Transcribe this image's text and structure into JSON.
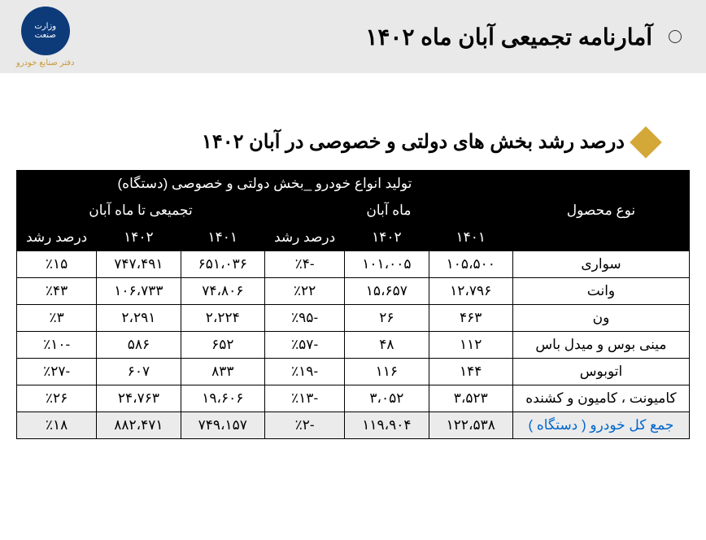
{
  "header": {
    "title": "آمارنامه تجمیعی آبان ماه ۱۴۰۲",
    "logo_caption": "دفتر صنایع خودرو"
  },
  "section": {
    "title": "درصد رشد بخش های دولتی و خصوصی در آبان ۱۴۰۲"
  },
  "table": {
    "head": {
      "product": "نوع محصول",
      "production": "تولید انواع خودرو _بخش دولتی و خصوصی (دستگاه)",
      "month": "ماه آبان",
      "cumulative": "تجمیعی تا ماه آبان",
      "y1401": "۱۴۰۱",
      "y1402": "۱۴۰۲",
      "growth": "درصد رشد"
    },
    "rows": [
      {
        "product": "سواری",
        "m1401": "۱۰۵،۵۰۰",
        "m1402": "۱۰۱،۰۰۵",
        "mgrowth": "-٪۴",
        "c1401": "۶۵۱،۰۳۶",
        "c1402": "۷۴۷،۴۹۱",
        "cgrowth": "٪۱۵"
      },
      {
        "product": "وانت",
        "m1401": "۱۲،۷۹۶",
        "m1402": "۱۵،۶۵۷",
        "mgrowth": "٪۲۲",
        "c1401": "۷۴،۸۰۶",
        "c1402": "۱۰۶،۷۳۳",
        "cgrowth": "٪۴۳"
      },
      {
        "product": "ون",
        "m1401": "۴۶۳",
        "m1402": "۲۶",
        "mgrowth": "-٪۹۵",
        "c1401": "۲،۲۲۴",
        "c1402": "۲،۲۹۱",
        "cgrowth": "٪۳"
      },
      {
        "product": "مینی بوس و میدل باس",
        "m1401": "۱۱۲",
        "m1402": "۴۸",
        "mgrowth": "-٪۵۷",
        "c1401": "۶۵۲",
        "c1402": "۵۸۶",
        "cgrowth": "-٪۱۰"
      },
      {
        "product": "اتوبوس",
        "m1401": "۱۴۴",
        "m1402": "۱۱۶",
        "mgrowth": "-٪۱۹",
        "c1401": "۸۳۳",
        "c1402": "۶۰۷",
        "cgrowth": "-٪۲۷"
      },
      {
        "product": "کامیونت ، کامیون و کشنده",
        "m1401": "۳،۵۲۳",
        "m1402": "۳،۰۵۲",
        "mgrowth": "-٪۱۳",
        "c1401": "۱۹،۶۰۶",
        "c1402": "۲۴،۷۶۳",
        "cgrowth": "٪۲۶"
      },
      {
        "product": "جمع کل خودرو ( دستگاه )",
        "m1401": "۱۲۲،۵۳۸",
        "m1402": "۱۱۹،۹۰۴",
        "mgrowth": "-٪۲",
        "c1401": "۷۴۹،۱۵۷",
        "c1402": "۸۸۲،۴۷۱",
        "cgrowth": "٪۱۸"
      }
    ]
  },
  "styles": {
    "header_bg": "#e9e9e9",
    "logo_bg": "#0d3b7a",
    "diamond_color": "#d4a838",
    "table_head_bg": "#000000",
    "table_head_fg": "#ffffff",
    "total_row_bg": "#ebebeb",
    "total_label_color": "#0066cc",
    "border_color": "#000000",
    "body_font_size": 17,
    "title_font_size": 28,
    "section_font_size": 24
  }
}
